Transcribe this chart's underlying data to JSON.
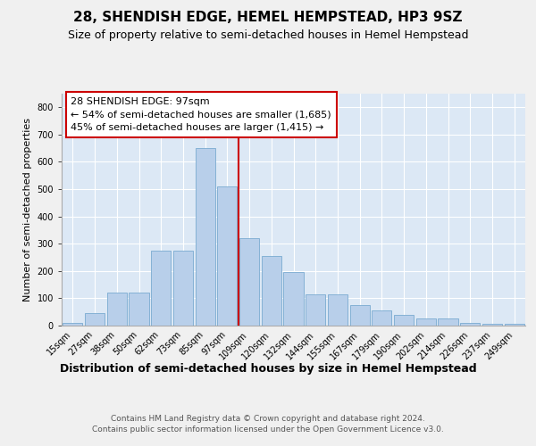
{
  "title": "28, SHENDISH EDGE, HEMEL HEMPSTEAD, HP3 9SZ",
  "subtitle": "Size of property relative to semi-detached houses in Hemel Hempstead",
  "xlabel": "Distribution of semi-detached houses by size in Hemel Hempstead",
  "ylabel": "Number of semi-detached properties",
  "footer1": "Contains HM Land Registry data © Crown copyright and database right 2024.",
  "footer2": "Contains public sector information licensed under the Open Government Licence v3.0.",
  "bar_labels": [
    "15sqm",
    "27sqm",
    "38sqm",
    "50sqm",
    "62sqm",
    "73sqm",
    "85sqm",
    "97sqm",
    "109sqm",
    "120sqm",
    "132sqm",
    "144sqm",
    "155sqm",
    "167sqm",
    "179sqm",
    "190sqm",
    "202sqm",
    "214sqm",
    "226sqm",
    "237sqm",
    "249sqm"
  ],
  "bar_values": [
    10,
    45,
    120,
    120,
    275,
    275,
    650,
    510,
    320,
    255,
    195,
    115,
    115,
    75,
    55,
    40,
    25,
    25,
    10,
    8,
    5
  ],
  "bar_color": "#b8cfea",
  "bar_edge_color": "#7aaad0",
  "vline_index": 7,
  "vline_color": "#cc0000",
  "annotation_title": "28 SHENDISH EDGE: 97sqm",
  "annotation_line1": "← 54% of semi-detached houses are smaller (1,685)",
  "annotation_line2": "45% of semi-detached houses are larger (1,415) →",
  "annotation_box_facecolor": "#ffffff",
  "annotation_box_edgecolor": "#cc0000",
  "ylim": [
    0,
    850
  ],
  "yticks": [
    0,
    100,
    200,
    300,
    400,
    500,
    600,
    700,
    800
  ],
  "bg_color": "#dce8f5",
  "grid_color": "#ffffff",
  "fig_facecolor": "#f0f0f0",
  "title_fontsize": 11,
  "subtitle_fontsize": 9,
  "xlabel_fontsize": 9,
  "ylabel_fontsize": 8,
  "tick_fontsize": 7,
  "annot_fontsize": 8,
  "footer_fontsize": 6.5
}
